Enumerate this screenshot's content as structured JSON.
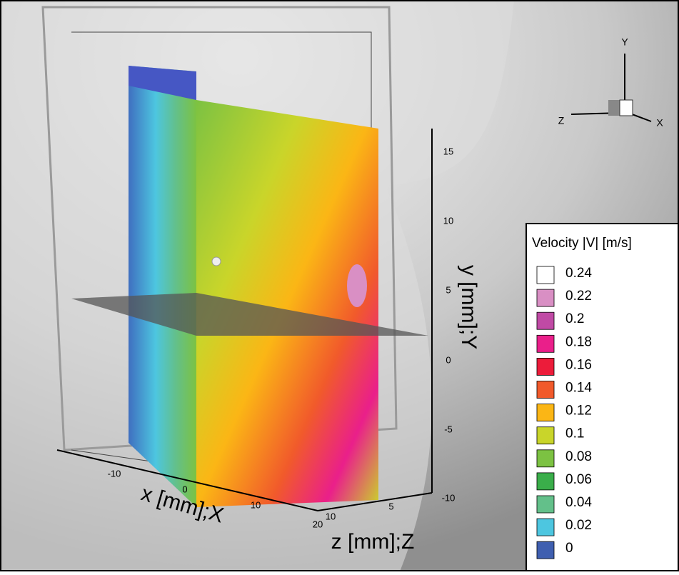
{
  "triad": {
    "x": "X",
    "y": "Y",
    "z": "Z"
  },
  "axes": {
    "x": {
      "label": "x [mm];X",
      "ticks": [
        -10,
        0,
        10,
        20
      ]
    },
    "y": {
      "label": "y [mm];Y",
      "ticks": [
        15,
        10,
        5,
        0,
        -5,
        -10
      ]
    },
    "z": {
      "label": "z [mm];Z",
      "ticks": [
        10,
        5
      ]
    }
  },
  "legend": {
    "title": "Velocity |V| [m/s]",
    "levels": [
      {
        "value": 0.24,
        "color": "#ffffff"
      },
      {
        "value": 0.22,
        "color": "#d98fc4"
      },
      {
        "value": 0.2,
        "color": "#c04aa5"
      },
      {
        "value": 0.18,
        "color": "#ea1f8a"
      },
      {
        "value": 0.16,
        "color": "#ec1c3a"
      },
      {
        "value": 0.14,
        "color": "#f15a2b"
      },
      {
        "value": 0.12,
        "color": "#fbb615"
      },
      {
        "value": 0.1,
        "color": "#c9d52a"
      },
      {
        "value": 0.08,
        "color": "#7cc242"
      },
      {
        "value": 0.06,
        "color": "#3aae4a"
      },
      {
        "value": 0.04,
        "color": "#63c08a"
      },
      {
        "value": 0.02,
        "color": "#4dc6e0"
      },
      {
        "value": 0,
        "color": "#3f5fb0"
      }
    ]
  }
}
